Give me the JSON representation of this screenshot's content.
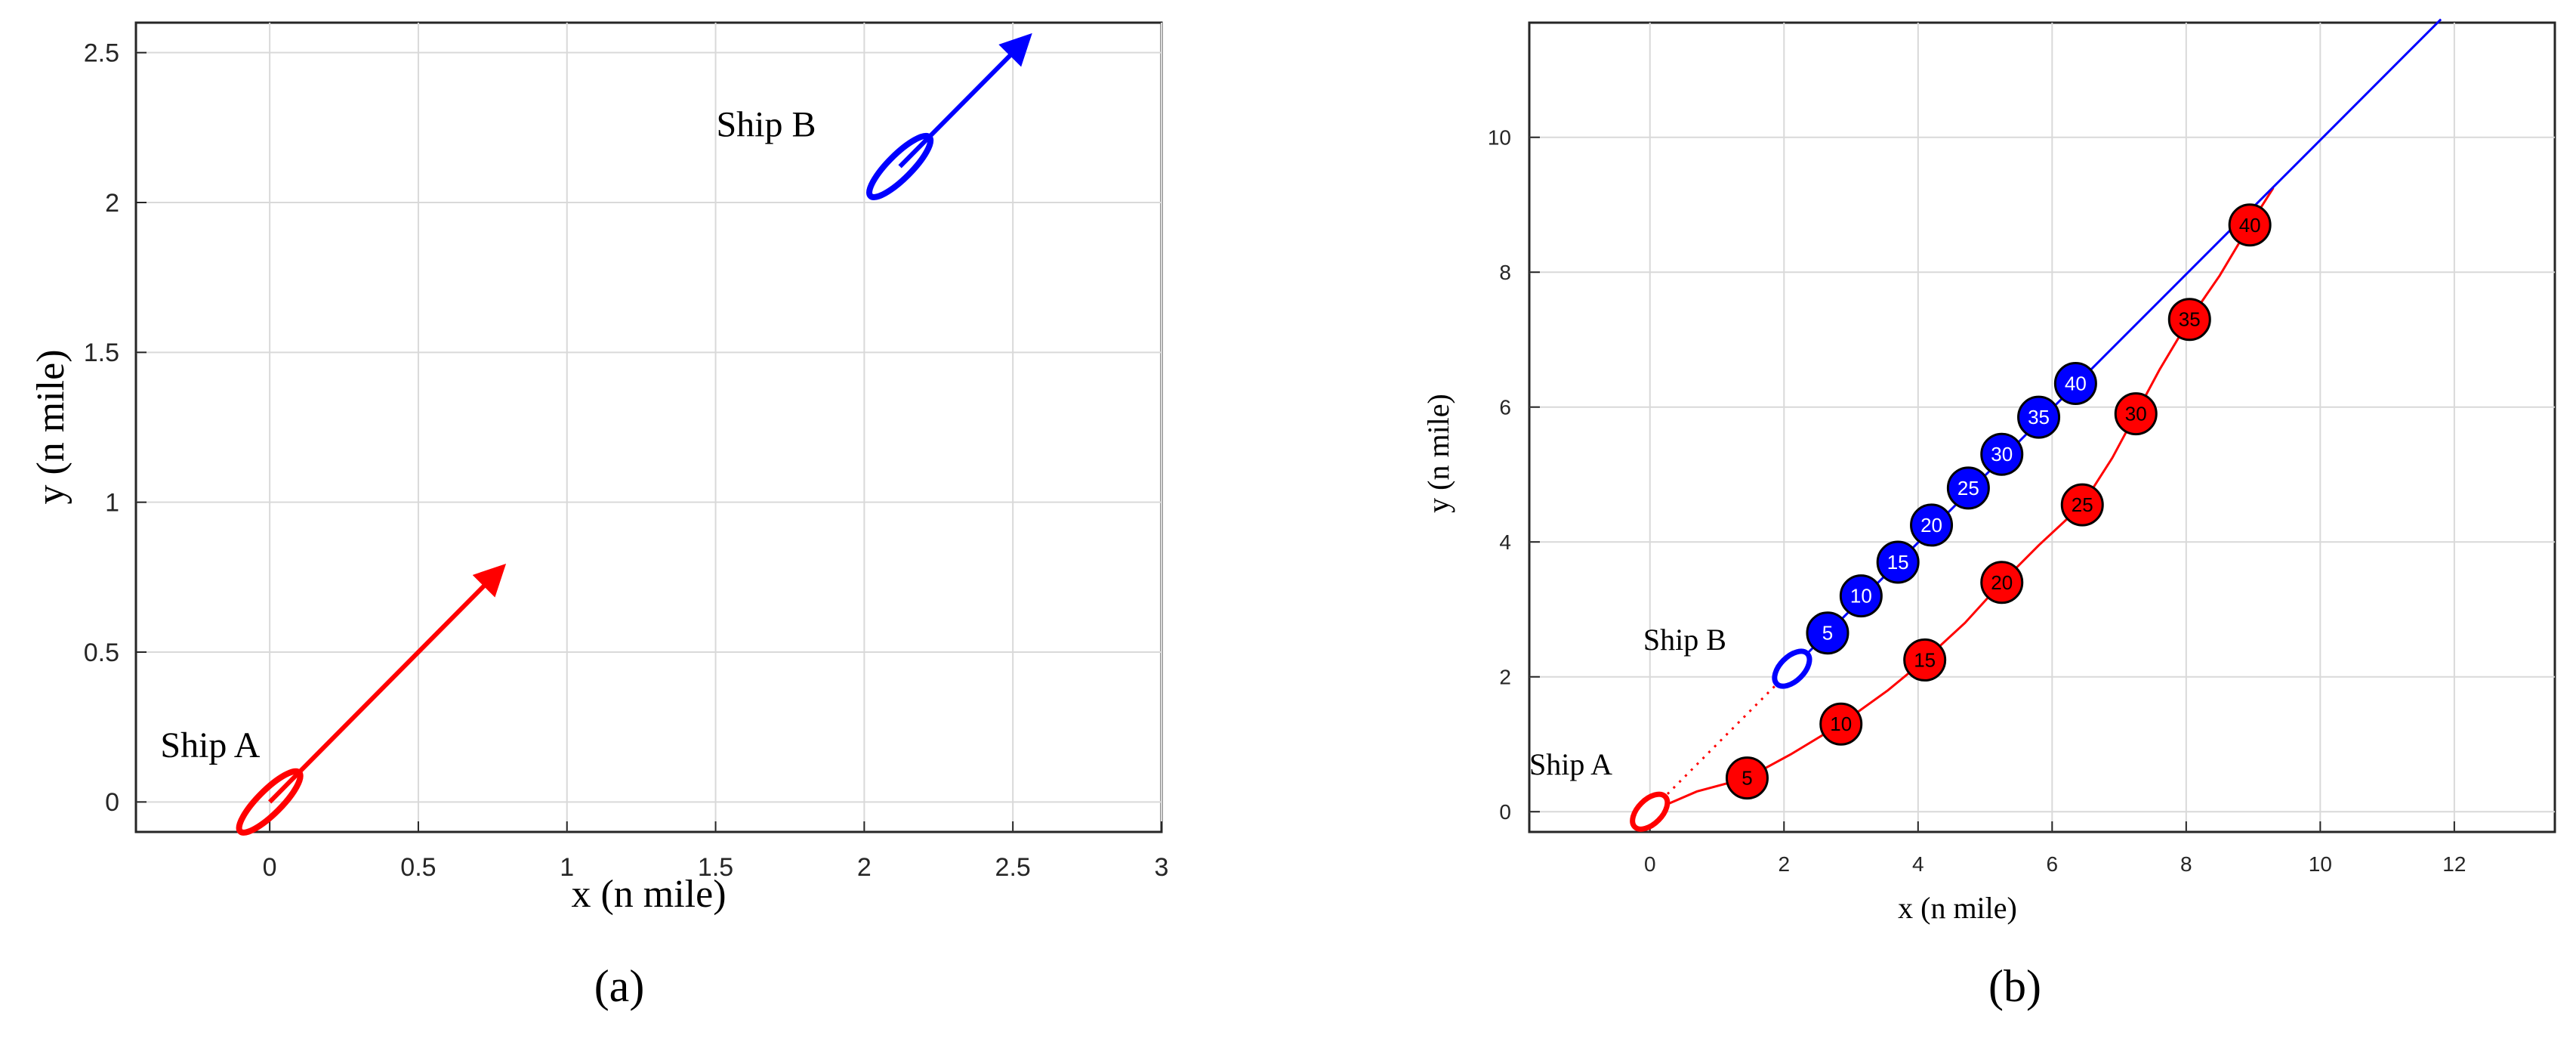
{
  "chart_data": [
    {
      "type": "line",
      "panel_label": "(a)",
      "title": "",
      "xlabel": "x (n mile)",
      "ylabel": "y (n mile)",
      "xlim": [
        -0.45,
        3.0
      ],
      "ylim": [
        -0.1,
        2.6
      ],
      "xticks": [
        0,
        0.5,
        1,
        1.5,
        2,
        2.5,
        3
      ],
      "xtick_labels": [
        "0",
        "0.5",
        "1",
        "1.5",
        "2",
        "2.5",
        "3"
      ],
      "yticks": [
        0,
        0.5,
        1,
        1.5,
        2,
        2.5
      ],
      "ytick_labels": [
        "0",
        "0.5",
        "1",
        "1.5",
        "2",
        "2.5"
      ],
      "grid": true,
      "ships": [
        {
          "name": "Ship A",
          "color": "#ff0000",
          "position": [
            0,
            0
          ],
          "ellipse_center": [
            0,
            0
          ],
          "ellipse_rx": 0.14,
          "ellipse_ry": 0.04,
          "ellipse_angle_deg": 45,
          "arrow_from": [
            0,
            0
          ],
          "arrow_to": [
            0.78,
            0.78
          ],
          "label_at": [
            -0.2,
            0.15
          ]
        },
        {
          "name": "Ship B",
          "color": "#0000ff",
          "position": [
            2.12,
            2.12
          ],
          "ellipse_center": [
            2.12,
            2.12
          ],
          "ellipse_rx": 0.14,
          "ellipse_ry": 0.04,
          "ellipse_angle_deg": 45,
          "arrow_from": [
            2.12,
            2.12
          ],
          "arrow_to": [
            2.55,
            2.55
          ],
          "label_at": [
            1.67,
            2.22
          ]
        }
      ]
    },
    {
      "type": "scatter",
      "panel_label": "(b)",
      "title": "",
      "xlabel": "x (n mile)",
      "ylabel": "y (n mile)",
      "xlim": [
        -1.8,
        13.5
      ],
      "ylim": [
        -0.3,
        11.7
      ],
      "xticks": [
        0,
        2,
        4,
        6,
        8,
        10,
        12
      ],
      "xtick_labels": [
        "0",
        "2",
        "4",
        "6",
        "8",
        "10",
        "12"
      ],
      "yticks": [
        0,
        2,
        4,
        6,
        8,
        10
      ],
      "ytick_labels": [
        "0",
        "2",
        "4",
        "6",
        "8",
        "10"
      ],
      "grid": true,
      "series": [
        {
          "name": "Ship A",
          "color": "#ff0000",
          "start": [
            0,
            0
          ],
          "label_at": [
            -1.8,
            0.55
          ],
          "path": [
            [
              0,
              0
            ],
            [
              0.7,
              0.3
            ],
            [
              1.45,
              0.5
            ],
            [
              2.1,
              0.85
            ],
            [
              2.85,
              1.3
            ],
            [
              3.55,
              1.8
            ],
            [
              4.1,
              2.25
            ],
            [
              4.7,
              2.8
            ],
            [
              5.25,
              3.4
            ],
            [
              5.8,
              3.95
            ],
            [
              6.45,
              4.55
            ],
            [
              6.9,
              5.25
            ],
            [
              7.25,
              5.9
            ],
            [
              7.6,
              6.55
            ],
            [
              8.05,
              7.3
            ],
            [
              8.5,
              7.95
            ],
            [
              8.95,
              8.7
            ],
            [
              9.3,
              9.25
            ]
          ],
          "markers": [
            {
              "label": "5",
              "x": 1.45,
              "y": 0.5
            },
            {
              "label": "10",
              "x": 2.85,
              "y": 1.3
            },
            {
              "label": "15",
              "x": 4.1,
              "y": 2.25
            },
            {
              "label": "20",
              "x": 5.25,
              "y": 3.4
            },
            {
              "label": "25",
              "x": 6.45,
              "y": 4.55
            },
            {
              "label": "30",
              "x": 7.25,
              "y": 5.9
            },
            {
              "label": "35",
              "x": 8.05,
              "y": 7.3
            },
            {
              "label": "40",
              "x": 8.95,
              "y": 8.7
            }
          ]
        },
        {
          "name": "Ship B",
          "color": "#0000ff",
          "start": [
            2.12,
            2.12
          ],
          "label_at": [
            -0.1,
            2.4
          ],
          "path": [
            [
              2.12,
              2.12
            ],
            [
              11.8,
              11.75
            ]
          ],
          "markers": [
            {
              "label": "5",
              "x": 2.65,
              "y": 2.65
            },
            {
              "label": "10",
              "x": 3.15,
              "y": 3.2
            },
            {
              "label": "15",
              "x": 3.7,
              "y": 3.7
            },
            {
              "label": "20",
              "x": 4.2,
              "y": 4.25
            },
            {
              "label": "25",
              "x": 4.75,
              "y": 4.8
            },
            {
              "label": "30",
              "x": 5.25,
              "y": 5.3
            },
            {
              "label": "35",
              "x": 5.8,
              "y": 5.85
            },
            {
              "label": "40",
              "x": 6.35,
              "y": 6.35
            }
          ]
        }
      ],
      "dotted_link": {
        "from": [
          0,
          0
        ],
        "to": [
          2.12,
          2.12
        ],
        "color": "#ff0000"
      }
    }
  ]
}
